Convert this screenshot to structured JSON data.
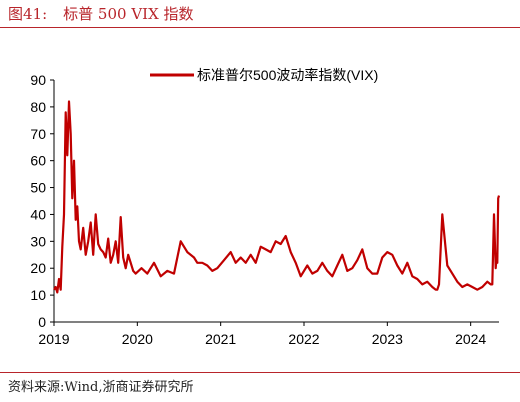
{
  "figure": {
    "label": "图41:",
    "title": "标普 500 VIX 指数",
    "source": "资料来源:Wind,浙商证券研究所"
  },
  "colors": {
    "accent": "#b8252b",
    "series": "#c00000",
    "axis": "#000000"
  },
  "chart_data": {
    "type": "line",
    "legend_position": "top-center",
    "grid": false,
    "xlim": [
      2019.0,
      2024.34
    ],
    "ylim": [
      0,
      90
    ],
    "yticks": [
      0,
      10,
      20,
      30,
      40,
      50,
      60,
      70,
      80,
      90
    ],
    "xticks": [
      2019,
      2020,
      2021,
      2022,
      2023,
      2024
    ],
    "series": [
      {
        "name": "标准普尔500波动率指数(VIX)",
        "x": [
          2019.0,
          2019.02,
          2019.04,
          2019.06,
          2019.08,
          2019.1,
          2019.12,
          2019.14,
          2019.16,
          2019.18,
          2019.2,
          2019.22,
          2019.24,
          2019.26,
          2019.28,
          2019.3,
          2019.32,
          2019.35,
          2019.38,
          2019.41,
          2019.44,
          2019.47,
          2019.5,
          2019.53,
          2019.56,
          2019.59,
          2019.62,
          2019.65,
          2019.68,
          2019.71,
          2019.74,
          2019.77,
          2019.8,
          2019.83,
          2019.86,
          2019.89,
          2019.92,
          2019.95,
          2019.98,
          2020.05,
          2020.12,
          2020.2,
          2020.28,
          2020.36,
          2020.44,
          2020.52,
          2020.6,
          2020.68,
          2020.72,
          2020.78,
          2020.84,
          2020.9,
          2020.96,
          2021.04,
          2021.12,
          2021.18,
          2021.24,
          2021.3,
          2021.36,
          2021.42,
          2021.48,
          2021.54,
          2021.6,
          2021.66,
          2021.72,
          2021.78,
          2021.84,
          2021.9,
          2021.96,
          2022.04,
          2022.1,
          2022.16,
          2022.22,
          2022.28,
          2022.34,
          2022.4,
          2022.46,
          2022.52,
          2022.58,
          2022.64,
          2022.7,
          2022.76,
          2022.82,
          2022.88,
          2022.94,
          2023.0,
          2023.06,
          2023.12,
          2023.18,
          2023.24,
          2023.3,
          2023.36,
          2023.42,
          2023.48,
          2023.54,
          2023.58,
          2023.6,
          2023.62,
          2023.66,
          2023.72,
          2023.78,
          2023.84,
          2023.9,
          2023.96,
          2024.02,
          2024.08,
          2024.14,
          2024.2,
          2024.24,
          2024.26,
          2024.28,
          2024.3,
          2024.31,
          2024.32,
          2024.33,
          2024.34
        ],
        "y": [
          12,
          13,
          11,
          16,
          12,
          28,
          40,
          78,
          62,
          82,
          70,
          46,
          60,
          38,
          43,
          30,
          27,
          35,
          25,
          30,
          37,
          25,
          40,
          29,
          27,
          26,
          24,
          31,
          22,
          25,
          30,
          22,
          39,
          24,
          20,
          25,
          22,
          19,
          18,
          20,
          18,
          22,
          17,
          19,
          18,
          30,
          26,
          24,
          22,
          22,
          21,
          19,
          20,
          23,
          26,
          22,
          24,
          22,
          25,
          22,
          28,
          27,
          26,
          30,
          29,
          32,
          26,
          22,
          17,
          21,
          18,
          19,
          22,
          19,
          17,
          21,
          25,
          19,
          20,
          23,
          27,
          20,
          18,
          18,
          24,
          26,
          25,
          21,
          18,
          22,
          17,
          16,
          14,
          15,
          13,
          12,
          12,
          14,
          40,
          21,
          18,
          15,
          13,
          14,
          13,
          12,
          13,
          15,
          14,
          14,
          40,
          20,
          24,
          22,
          46,
          47
        ]
      }
    ]
  }
}
